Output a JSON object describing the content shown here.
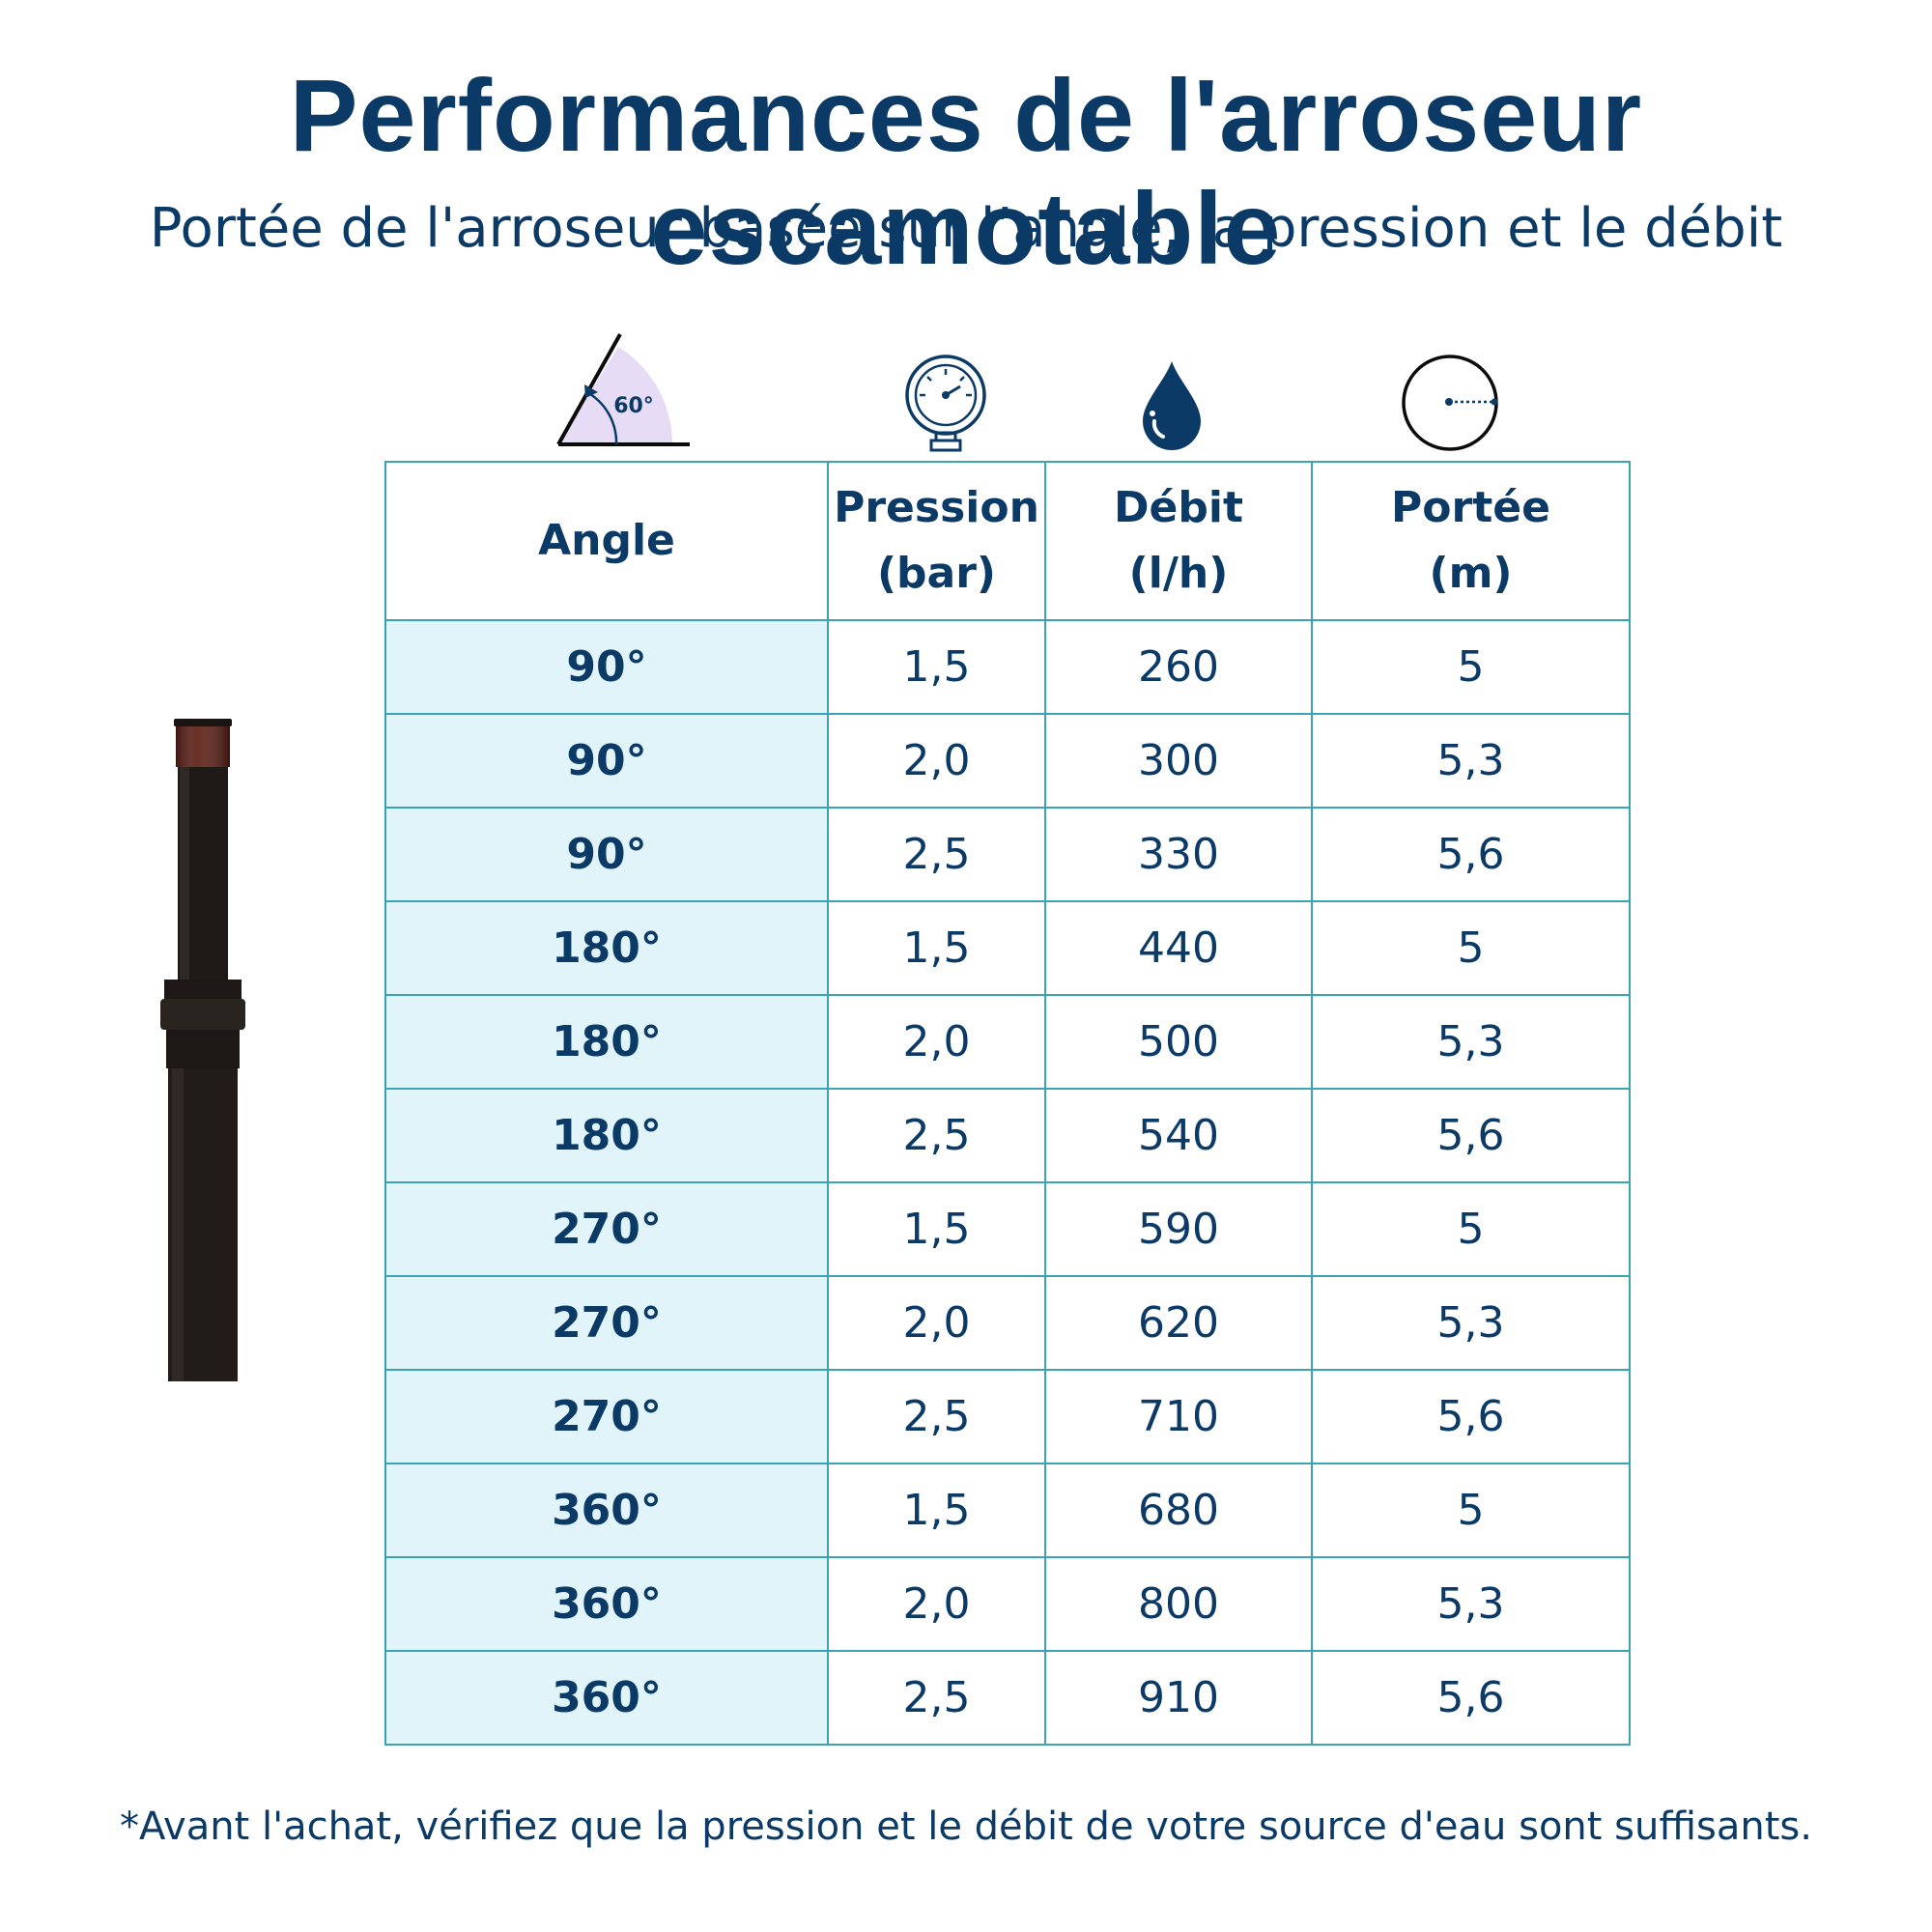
{
  "header": {
    "title": "Performances de l'arroseur escamotable",
    "subtitle": "Portée de l'arroseur basée sur l’angle, la pression et le débit"
  },
  "icons": {
    "angle": {
      "name": "angle-icon",
      "label": "60°"
    },
    "pressure": {
      "name": "pressure-gauge-icon"
    },
    "flow": {
      "name": "water-drop-icon"
    },
    "range": {
      "name": "radius-circle-icon"
    }
  },
  "table": {
    "headers": [
      {
        "line1": "Angle",
        "line2": ""
      },
      {
        "line1": "Pression",
        "line2": "(bar)"
      },
      {
        "line1": "Débit",
        "line2": "(l/h)"
      },
      {
        "line1": "Portée",
        "line2": "(m)"
      }
    ],
    "rows": [
      [
        "90°",
        "1,5",
        "260",
        "5"
      ],
      [
        "90°",
        "2,0",
        "300",
        "5,3"
      ],
      [
        "90°",
        "2,5",
        "330",
        "5,6"
      ],
      [
        "180°",
        "1,5",
        "440",
        "5"
      ],
      [
        "180°",
        "2,0",
        "500",
        "5,3"
      ],
      [
        "180°",
        "2,5",
        "540",
        "5,6"
      ],
      [
        "270°",
        "1,5",
        "590",
        "5"
      ],
      [
        "270°",
        "2,0",
        "620",
        "5,3"
      ],
      [
        "270°",
        "2,5",
        "710",
        "5,6"
      ],
      [
        "360°",
        "1,5",
        "680",
        "5"
      ],
      [
        "360°",
        "2,0",
        "800",
        "5,3"
      ],
      [
        "360°",
        "2,5",
        "910",
        "5,6"
      ]
    ]
  },
  "colors": {
    "text": "#0b3a66",
    "border": "#3aa3b5",
    "angle_cell_bg": "#e1f4fa",
    "angle_icon_fill": "#e6dcf5"
  },
  "footer": {
    "note": "*Avant l'achat, vérifiez que la pression et le débit de votre source d'eau sont suffisants."
  },
  "image": {
    "name": "pop-up-sprinkler-image"
  }
}
